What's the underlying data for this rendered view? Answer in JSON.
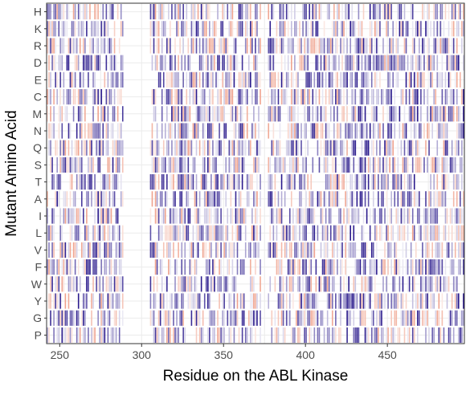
{
  "chart_data": {
    "type": "heatmap",
    "xlabel": "Residue on the ABL Kinase",
    "ylabel": "Mutant Amino Acid",
    "x_range": [
      242,
      497
    ],
    "x_ticks": [
      250,
      300,
      350,
      400,
      450
    ],
    "x_gaps": [
      [
        289,
        304
      ],
      [
        373,
        376
      ]
    ],
    "y_categories": [
      "H",
      "K",
      "R",
      "D",
      "E",
      "C",
      "M",
      "N",
      "Q",
      "S",
      "T",
      "A",
      "I",
      "L",
      "V",
      "F",
      "W",
      "Y",
      "G",
      "P"
    ],
    "value_range": [
      -1,
      1
    ],
    "color_scale": {
      "low": "#e8785a",
      "mid": "#ffffff",
      "high": "#2a1a8c"
    },
    "grid": true,
    "legend": "none",
    "values_note_text": ""
  }
}
